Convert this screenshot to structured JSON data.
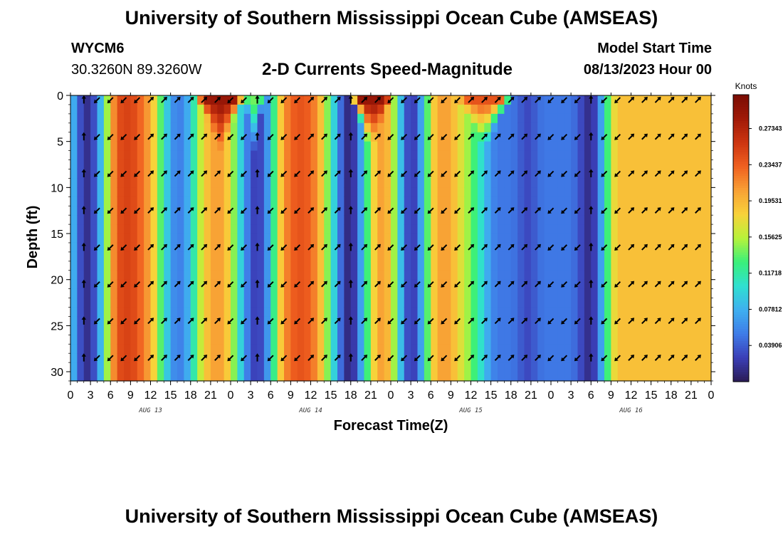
{
  "header": {
    "title": "University of Southern Mississippi Ocean Cube (AMSEAS)",
    "station_id": "WYCM6",
    "station_coords": "30.3260N  89.3260W",
    "plot_title": "2-D Currents Speed-Magnitude",
    "model_label": "Model Start Time",
    "model_time": "08/13/2023 Hour 00"
  },
  "footer": {
    "title": "University of Southern Mississippi Ocean Cube (AMSEAS)"
  },
  "colors": {
    "scale": [
      "#2a1b55",
      "#3b3fb8",
      "#3f7ce8",
      "#3fb0f0",
      "#2fe0d0",
      "#3af07a",
      "#b8f23a",
      "#f8d23a",
      "#f8a035",
      "#f06020",
      "#cc3510",
      "#a01a08",
      "#7a0d04"
    ]
  },
  "chart_data": {
    "type": "heatmap",
    "title": "2-D Currents Speed-Magnitude",
    "xlabel": "Forecast Time(Z)",
    "ylabel": "Depth (ft)",
    "colorbar_label": "Knots",
    "colorbar_ticks": [
      "0.27343",
      "0.23437",
      "0.19531",
      "0.15625",
      "0.11718",
      "0.07812",
      "0.03906"
    ],
    "colorbar_values": [
      0.27343,
      0.23437,
      0.19531,
      0.15625,
      0.11718,
      0.07812,
      0.03906
    ],
    "value_range": [
      0.0,
      0.31
    ],
    "x_range_hours": [
      0,
      96
    ],
    "x_tick_hours": [
      0,
      3,
      6,
      9,
      12,
      15,
      18,
      21,
      24,
      27,
      30,
      33,
      36,
      39,
      42,
      45,
      48,
      51,
      54,
      57,
      60,
      63,
      66,
      69,
      72,
      75,
      78,
      81,
      84,
      87,
      90,
      93,
      96
    ],
    "x_tick_labels": [
      "0",
      "3",
      "6",
      "9",
      "12",
      "15",
      "18",
      "21",
      "0",
      "3",
      "6",
      "9",
      "12",
      "15",
      "18",
      "21",
      "0",
      "3",
      "6",
      "9",
      "12",
      "15",
      "18",
      "21",
      "0",
      "3",
      "6",
      "9",
      "12",
      "15",
      "18",
      "21",
      "0"
    ],
    "date_labels": [
      {
        "hour": 12,
        "label": "AUG 13"
      },
      {
        "hour": 36,
        "label": "AUG 14"
      },
      {
        "hour": 60,
        "label": "AUG 15"
      },
      {
        "hour": 84,
        "label": "AUG 16"
      }
    ],
    "y_range": [
      0,
      31
    ],
    "y_ticks": [
      0,
      5,
      10,
      15,
      20,
      25,
      30
    ],
    "y_tick_labels": [
      "0",
      "5",
      "10",
      "15",
      "20",
      "25",
      "30"
    ],
    "speed_profile": [
      {
        "h": 0,
        "v": 0.1
      },
      {
        "h": 1,
        "v": 0.05
      },
      {
        "h": 2,
        "v": 0.015
      },
      {
        "h": 3,
        "v": 0.015
      },
      {
        "h": 4,
        "v": 0.05
      },
      {
        "h": 5,
        "v": 0.11
      },
      {
        "h": 6,
        "v": 0.19
      },
      {
        "h": 7,
        "v": 0.24
      },
      {
        "h": 8,
        "v": 0.25
      },
      {
        "h": 9,
        "v": 0.25
      },
      {
        "h": 10,
        "v": 0.24
      },
      {
        "h": 11,
        "v": 0.22
      },
      {
        "h": 12,
        "v": 0.2
      },
      {
        "h": 13,
        "v": 0.16
      },
      {
        "h": 14,
        "v": 0.11
      },
      {
        "h": 15,
        "v": 0.07
      },
      {
        "h": 16,
        "v": 0.05
      },
      {
        "h": 17,
        "v": 0.06
      },
      {
        "h": 18,
        "v": 0.09
      },
      {
        "h": 19,
        "v": 0.14
      },
      {
        "h": 20,
        "v": 0.18
      },
      {
        "h": 21,
        "v": 0.2
      },
      {
        "h": 22,
        "v": 0.21
      },
      {
        "h": 23,
        "v": 0.2
      },
      {
        "h": 24,
        "v": 0.17
      },
      {
        "h": 25,
        "v": 0.12
      },
      {
        "h": 26,
        "v": 0.07
      },
      {
        "h": 27,
        "v": 0.035
      },
      {
        "h": 28,
        "v": 0.02
      },
      {
        "h": 29,
        "v": 0.04
      },
      {
        "h": 30,
        "v": 0.09
      },
      {
        "h": 31,
        "v": 0.16
      },
      {
        "h": 32,
        "v": 0.21
      },
      {
        "h": 33,
        "v": 0.23
      },
      {
        "h": 34,
        "v": 0.24
      },
      {
        "h": 35,
        "v": 0.24
      },
      {
        "h": 36,
        "v": 0.23
      },
      {
        "h": 37,
        "v": 0.21
      },
      {
        "h": 38,
        "v": 0.17
      },
      {
        "h": 39,
        "v": 0.12
      },
      {
        "h": 40,
        "v": 0.07
      },
      {
        "h": 41,
        "v": 0.02
      },
      {
        "h": 42,
        "v": 0.005
      },
      {
        "h": 43,
        "v": 0.04
      },
      {
        "h": 44,
        "v": 0.1
      },
      {
        "h": 45,
        "v": 0.16
      },
      {
        "h": 46,
        "v": 0.2
      },
      {
        "h": 47,
        "v": 0.21
      },
      {
        "h": 48,
        "v": 0.18
      },
      {
        "h": 49,
        "v": 0.12
      },
      {
        "h": 50,
        "v": 0.05
      },
      {
        "h": 51,
        "v": 0.015
      },
      {
        "h": 52,
        "v": 0.04
      },
      {
        "h": 53,
        "v": 0.1
      },
      {
        "h": 54,
        "v": 0.17
      },
      {
        "h": 55,
        "v": 0.2
      },
      {
        "h": 56,
        "v": 0.21
      },
      {
        "h": 57,
        "v": 0.2
      },
      {
        "h": 58,
        "v": 0.18
      },
      {
        "h": 59,
        "v": 0.16
      },
      {
        "h": 60,
        "v": 0.14
      },
      {
        "h": 61,
        "v": 0.12
      },
      {
        "h": 62,
        "v": 0.09
      },
      {
        "h": 63,
        "v": 0.06
      },
      {
        "h": 64,
        "v": 0.05
      },
      {
        "h": 65,
        "v": 0.05
      },
      {
        "h": 66,
        "v": 0.05
      },
      {
        "h": 67,
        "v": 0.045
      },
      {
        "h": 68,
        "v": 0.03
      },
      {
        "h": 69,
        "v": 0.03
      },
      {
        "h": 70,
        "v": 0.045
      },
      {
        "h": 71,
        "v": 0.05
      },
      {
        "h": 72,
        "v": 0.05
      },
      {
        "h": 73,
        "v": 0.05
      },
      {
        "h": 74,
        "v": 0.05
      },
      {
        "h": 75,
        "v": 0.05
      },
      {
        "h": 76,
        "v": 0.04
      },
      {
        "h": 77,
        "v": 0.02
      },
      {
        "h": 78,
        "v": 0.01
      },
      {
        "h": 79,
        "v": 0.04
      },
      {
        "h": 80,
        "v": 0.1
      },
      {
        "h": 81,
        "v": 0.16
      },
      {
        "h": 82,
        "v": 0.19
      }
    ],
    "surface_hotspots": [
      {
        "h0": 19,
        "h1": 26,
        "peak_h": 22.5,
        "v": 0.29
      },
      {
        "h0": 42,
        "h1": 48,
        "peak_h": 45,
        "v": 0.29
      },
      {
        "h0": 26,
        "h1": 29,
        "peak_h": 27.5,
        "v": 0.14
      },
      {
        "h0": 58,
        "h1": 66,
        "peak_h": 62,
        "v": 0.24
      }
    ],
    "arrow_rows_ft": [
      0,
      4,
      8,
      12,
      16,
      20,
      24,
      28
    ],
    "arrow_hours": [
      2,
      4,
      6,
      8,
      10,
      12,
      14,
      16,
      18,
      20,
      22,
      24,
      26,
      28,
      30,
      32,
      34,
      36,
      38,
      40,
      42,
      44,
      46,
      48,
      50,
      52,
      54,
      56,
      58,
      60,
      62,
      64,
      66,
      68,
      70,
      72,
      74,
      76,
      78,
      80,
      82,
      84,
      86,
      88,
      90,
      92,
      94
    ]
  }
}
